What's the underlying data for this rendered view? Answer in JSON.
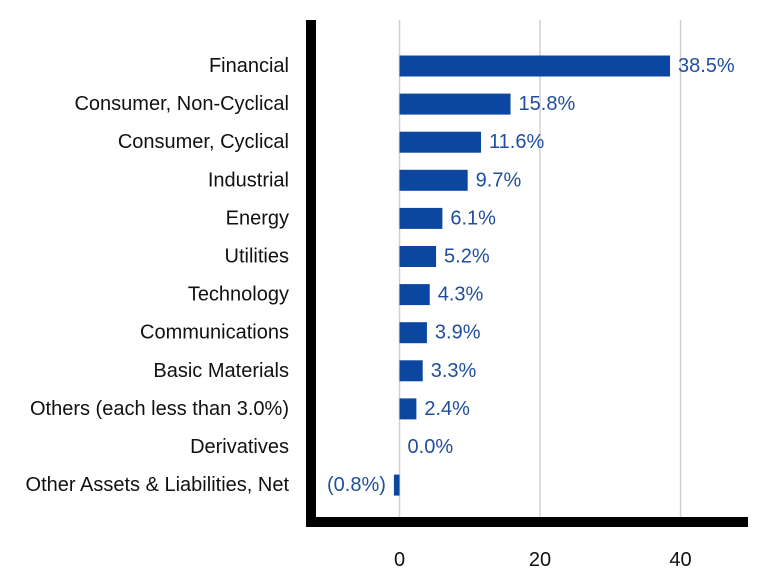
{
  "chart_data": {
    "type": "bar",
    "orientation": "horizontal",
    "categories": [
      "Financial",
      "Consumer, Non-Cyclical",
      "Consumer, Cyclical",
      "Industrial",
      "Energy",
      "Utilities",
      "Technology",
      "Communications",
      "Basic Materials",
      "Others (each less than 3.0%)",
      "Derivatives",
      "Other Assets & Liabilities, Net"
    ],
    "values": [
      38.5,
      15.8,
      11.6,
      9.7,
      6.1,
      5.2,
      4.3,
      3.9,
      3.3,
      2.4,
      0.0,
      -0.8
    ],
    "value_labels": [
      "38.5%",
      "15.8%",
      "11.6%",
      "9.7%",
      "6.1%",
      "5.2%",
      "4.3%",
      "3.9%",
      "3.3%",
      "2.4%",
      "0.0%",
      "(0.8%)"
    ],
    "x_ticks": [
      0,
      20,
      40
    ],
    "xlim": [
      -12.6,
      49.6
    ],
    "grid": true,
    "title": "",
    "xlabel": "",
    "ylabel": "",
    "colors": {
      "bar": "#0b47a1",
      "value_label": "#1f4e9c",
      "axis": "#000000",
      "grid": "#d0d0d0"
    }
  }
}
